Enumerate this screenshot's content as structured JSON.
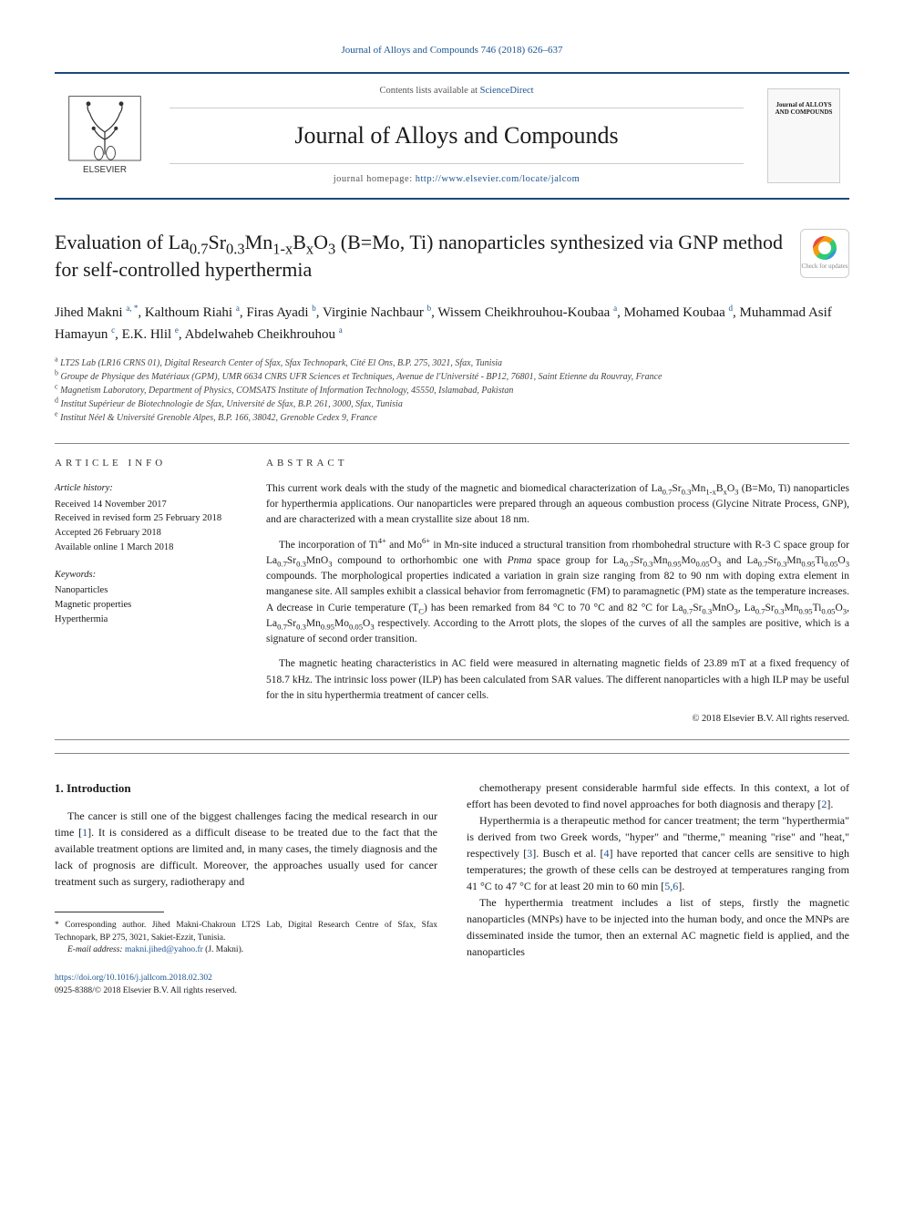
{
  "top_citation_link": "Journal of Alloys and Compounds 746 (2018) 626–637",
  "header": {
    "contents_prefix": "Contents lists available at ",
    "contents_link_text": "ScienceDirect",
    "journal_title": "Journal of Alloys and Compounds",
    "homepage_prefix": "journal homepage: ",
    "homepage_link": "http://www.elsevier.com/locate/jalcom",
    "publisher_name": "ELSEVIER",
    "cover_label": "Journal of ALLOYS AND COMPOUNDS"
  },
  "article": {
    "title_html": "Evaluation of La<sub>0.7</sub>Sr<sub>0.3</sub>Mn<sub>1-x</sub>B<sub>x</sub>O<sub>3</sub> (B=Mo, Ti) nanoparticles synthesized via GNP method for self-controlled hyperthermia",
    "check_updates_label": "Check for updates",
    "authors_html": "Jihed Makni <sup>a, *</sup>, Kalthoum Riahi <sup>a</sup>, Firas Ayadi <sup>b</sup>, Virginie Nachbaur <sup>b</sup>, Wissem Cheikhrouhou-Koubaa <sup>a</sup>, Mohamed Koubaa <sup>d</sup>, Muhammad Asif Hamayun <sup>c</sup>, E.K. Hlil <sup>e</sup>, Abdelwaheb Cheikhrouhou <sup>a</sup>",
    "affiliations": [
      {
        "sup": "a",
        "text": "LT2S Lab (LR16 CRNS 01), Digital Research Center of Sfax, Sfax Technopark, Cité El Ons, B.P. 275, 3021, Sfax, Tunisia"
      },
      {
        "sup": "b",
        "text": "Groupe de Physique des Matériaux (GPM), UMR 6634 CNRS UFR Sciences et Techniques, Avenue de l'Université - BP12, 76801, Saint Etienne du Rouvray, France"
      },
      {
        "sup": "c",
        "text": "Magnetism Laboratory, Department of Physics, COMSATS Institute of Information Technology, 45550, Islamabad, Pakistan"
      },
      {
        "sup": "d",
        "text": "Institut Supérieur de Biotechnologie de Sfax, Université de Sfax, B.P. 261, 3000, Sfax, Tunisia"
      },
      {
        "sup": "e",
        "text": "Institut Néel & Université Grenoble Alpes, B.P. 166, 38042, Grenoble Cedex 9, France"
      }
    ]
  },
  "info": {
    "heading": "ARTICLE INFO",
    "history_title": "Article history:",
    "history_lines": [
      "Received 14 November 2017",
      "Received in revised form 25 February 2018",
      "Accepted 26 February 2018",
      "Available online 1 March 2018"
    ],
    "keywords_title": "Keywords:",
    "keywords": [
      "Nanoparticles",
      "Magnetic properties",
      "Hyperthermia"
    ]
  },
  "abstract": {
    "heading": "ABSTRACT",
    "paragraphs_html": [
      "This current work deals with the study of the magnetic and biomedical characterization of La<sub>0.7</sub>Sr<sub>0.3</sub>Mn<sub>1-x</sub>B<sub>x</sub>O<sub>3</sub> (B=Mo, Ti) nanoparticles for hyperthermia applications. Our nanoparticles were prepared through an aqueous combustion process (Glycine Nitrate Process, GNP), and are characterized with a mean crystallite size about 18 nm.",
      "The incorporation of Ti<sup>4+</sup> and Mo<sup>6+</sup> in Mn-site induced a structural transition from rhombohedral structure with R-3 C space group for La<sub>0.7</sub>Sr<sub>0.3</sub>MnO<sub>3</sub> compound to orthorhombic one with <i>Pnma</i> space group for La<sub>0.7</sub>Sr<sub>0.3</sub>Mn<sub>0.95</sub>Mo<sub>0.05</sub>O<sub>3</sub> and La<sub>0.7</sub>Sr<sub>0.3</sub>Mn<sub>0.95</sub>Ti<sub>0.05</sub>O<sub>3</sub> compounds. The morphological properties indicated a variation in grain size ranging from 82 to 90 nm with doping extra element in manganese site. All samples exhibit a classical behavior from ferromagnetic (FM) to paramagnetic (PM) state as the temperature increases. A decrease in Curie temperature (T<sub>C</sub>) has been remarked from 84 °C to 70 °C and 82 °C for La<sub>0.7</sub>Sr<sub>0.3</sub>MnO<sub>3</sub>, La<sub>0.7</sub>Sr<sub>0.3</sub>Mn<sub>0.95</sub>Ti<sub>0.05</sub>O<sub>3</sub>, La<sub>0.7</sub>Sr<sub>0.3</sub>Mn<sub>0.95</sub>Mo<sub>0.05</sub>O<sub>3</sub> respectively. According to the Arrott plots, the slopes of the curves of all the samples are positive, which is a signature of second order transition.",
      "The magnetic heating characteristics in AC field were measured in alternating magnetic fields of 23.89 mT at a fixed frequency of 518.7 kHz. The intrinsic loss power (ILP) has been calculated from SAR values. The different nanoparticles with a high ILP may be useful for the in situ hyperthermia treatment of cancer cells."
    ],
    "copyright": "© 2018 Elsevier B.V. All rights reserved."
  },
  "body": {
    "section_heading": "1. Introduction",
    "left_paragraphs_html": [
      "The cancer is still one of the biggest challenges facing the medical research in our time [<span class=\"ref-link\">1</span>]. It is considered as a difficult disease to be treated due to the fact that the available treatment options are limited and, in many cases, the timely diagnosis and the lack of prognosis are difficult. Moreover, the approaches usually used for cancer treatment such as surgery, radiotherapy and"
    ],
    "right_paragraphs_html": [
      "chemotherapy present considerable harmful side effects. In this context, a lot of effort has been devoted to find novel approaches for both diagnosis and therapy [<span class=\"ref-link\">2</span>].",
      "Hyperthermia is a therapeutic method for cancer treatment; the term \"hyperthermia\" is derived from two Greek words, \"hyper\" and \"therme,\" meaning \"rise\" and \"heat,\" respectively [<span class=\"ref-link\">3</span>]. Busch et al. [<span class=\"ref-link\">4</span>] have reported that cancer cells are sensitive to high temperatures; the growth of these cells can be destroyed at temperatures ranging from 41 °C to 47 °C for at least 20 min to 60 min [<span class=\"ref-link\">5,6</span>].",
      "The hyperthermia treatment includes a list of steps, firstly the magnetic nanoparticles (MNPs) have to be injected into the human body, and once the MNPs are disseminated inside the tumor, then an external AC magnetic field is applied, and the nanoparticles"
    ]
  },
  "footnotes": {
    "corresponding": "* Corresponding author. Jihed Makni-Chakroun LT2S Lab, Digital Research Centre of Sfax, Sfax Technopark, BP 275, 3021, Sakiet-Ezzit, Tunisia.",
    "email_label": "E-mail address: ",
    "email": "makni.jihed@yahoo.fr",
    "email_suffix": " (J. Makni)."
  },
  "doi": {
    "link": "https://doi.org/10.1016/j.jallcom.2018.02.302",
    "issn_line": "0925-8388/© 2018 Elsevier B.V. All rights reserved."
  },
  "colors": {
    "link": "#1a5490",
    "rule": "#1a4a7a",
    "text": "#1a1a1a"
  }
}
